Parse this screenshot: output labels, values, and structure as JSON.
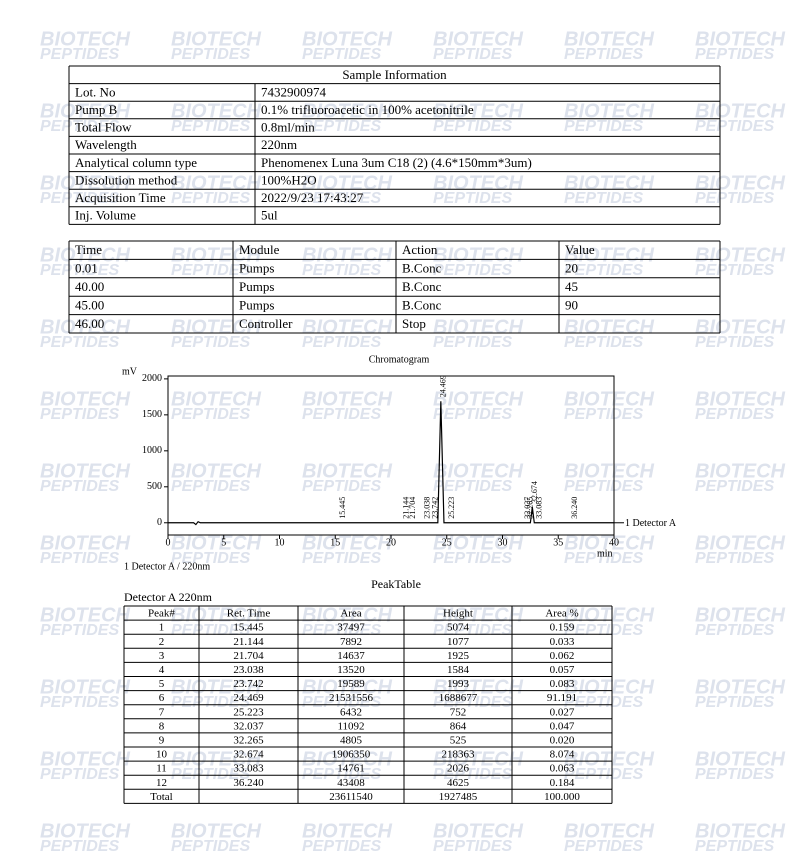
{
  "watermark": [
    "BIOTECH",
    "PEPTIDES"
  ],
  "sample_info": {
    "title": "Sample Information",
    "rows": [
      [
        "Lot. No",
        "7432900974"
      ],
      [
        "Pump B",
        "0.1% trifluoroacetic in 100% acetonitrile"
      ],
      [
        "Total Flow",
        "0.8ml/min"
      ],
      [
        "Wavelength",
        "220nm"
      ],
      [
        "Analytical column type",
        "Phenomenex Luna 3um C18 (2) (4.6*150mm*3um)"
      ],
      [
        "Dissolution method",
        "100%H2O"
      ],
      [
        "Acquisition Time",
        "2022/9/23  17:43:27"
      ],
      [
        "Inj. Volume",
        "5ul"
      ]
    ]
  },
  "method_table": {
    "header": [
      "Time",
      "Module",
      "Action",
      "Value"
    ],
    "rows": [
      [
        "0.01",
        "Pumps",
        "B.Conc",
        "20"
      ],
      [
        "40.00",
        "Pumps",
        "B.Conc",
        "45"
      ],
      [
        "45.00",
        "Pumps",
        "B.Conc",
        "90"
      ],
      [
        "46.00",
        "Controller",
        "Stop"
      ]
    ]
  },
  "chromatogram": {
    "type": "line",
    "title": "Chromatogram",
    "ylabel": "mV",
    "xlabel": "min",
    "xlim": [
      0,
      40
    ],
    "ylim": [
      -170,
      2040
    ],
    "xticks": [
      0,
      5,
      10,
      15,
      20,
      25,
      30,
      35,
      40
    ],
    "yticks": [
      0,
      500,
      1000,
      1500,
      2000
    ],
    "x": [
      0,
      2.3,
      2.5,
      2.7,
      2.9,
      24.2,
      24.469,
      24.75,
      32.5,
      32.674,
      32.85,
      40
    ],
    "series": [
      {
        "name": "1 Detector A",
        "color": "#000000",
        "values": [
          0,
          0,
          -25,
          15,
          0,
          0,
          1689,
          0,
          0,
          218,
          0,
          0
        ]
      }
    ],
    "peak_labels": [
      {
        "x": 15.445,
        "label": "15.445"
      },
      {
        "x": 21.144,
        "label": "21.144"
      },
      {
        "x": 21.704,
        "label": "21.704"
      },
      {
        "x": 23.038,
        "label": "23.038"
      },
      {
        "x": 23.742,
        "label": "23.742"
      },
      {
        "x": 24.469,
        "label": "24.469"
      },
      {
        "x": 25.223,
        "label": "25.223"
      },
      {
        "x": 32.037,
        "label": "32.037"
      },
      {
        "x": 32.265,
        "label": "32.265"
      },
      {
        "x": 32.674,
        "label": "32.674"
      },
      {
        "x": 33.083,
        "label": "33.083"
      },
      {
        "x": 36.24,
        "label": "36.240"
      }
    ],
    "note": "1 Detector A / 220nm"
  },
  "peak_table": {
    "title": "PeakTable",
    "detector": "Detector A 220nm",
    "header": [
      "Peak#",
      "Ret. Time",
      "Area",
      "Height",
      "Area %"
    ],
    "rows": [
      [
        "1",
        "15.445",
        "37497",
        "5074",
        "0.159"
      ],
      [
        "2",
        "21.144",
        "7892",
        "1077",
        "0.033"
      ],
      [
        "3",
        "21.704",
        "14637",
        "1925",
        "0.062"
      ],
      [
        "4",
        "23.038",
        "13520",
        "1584",
        "0.057"
      ],
      [
        "5",
        "23.742",
        "19589",
        "1993",
        "0.083"
      ],
      [
        "6",
        "24.469",
        "21531556",
        "1688677",
        "91.191"
      ],
      [
        "7",
        "25.223",
        "6432",
        "752",
        "0.027"
      ],
      [
        "8",
        "32.037",
        "11092",
        "864",
        "0.047"
      ],
      [
        "9",
        "32.265",
        "4805",
        "525",
        "0.020"
      ],
      [
        "10",
        "32.674",
        "1906350",
        "218363",
        "8.074"
      ],
      [
        "11",
        "33.083",
        "14761",
        "2026",
        "0.063"
      ],
      [
        "12",
        "36.240",
        "43408",
        "4625",
        "0.184"
      ]
    ],
    "total": {
      "label": "Total",
      "area": "23611540",
      "height": "1927485",
      "area_pct": "100.000"
    }
  }
}
